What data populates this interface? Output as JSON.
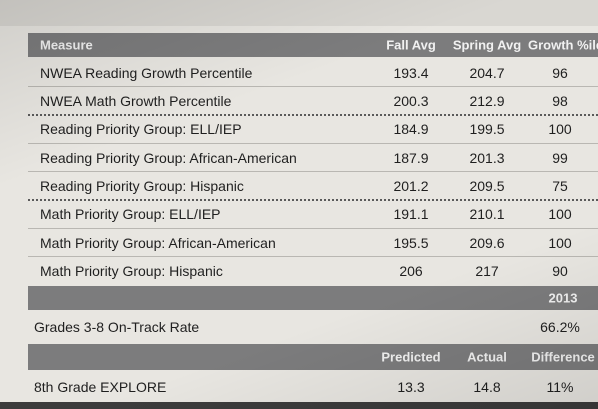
{
  "header": {
    "measure": "Measure",
    "fall_avg": "Fall Avg",
    "spring_avg": "Spring Avg",
    "growth": "Growth %ile"
  },
  "rows": [
    {
      "label": "NWEA Reading Growth Percentile",
      "fall": "193.4",
      "spring": "204.7",
      "growth": "96"
    },
    {
      "label": "NWEA Math Growth Percentile",
      "fall": "200.3",
      "spring": "212.9",
      "growth": "98"
    },
    {
      "label": "Reading Priority Group: ELL/IEP",
      "fall": "184.9",
      "spring": "199.5",
      "growth": "100"
    },
    {
      "label": "Reading Priority Group: African-American",
      "fall": "187.9",
      "spring": "201.3",
      "growth": "99"
    },
    {
      "label": "Reading Priority Group: Hispanic",
      "fall": "201.2",
      "spring": "209.5",
      "growth": "75"
    },
    {
      "label": "Math Priority Group: ELL/IEP",
      "fall": "191.1",
      "spring": "210.1",
      "growth": "100"
    },
    {
      "label": "Math Priority Group: African-American",
      "fall": "195.5",
      "spring": "209.6",
      "growth": "100"
    },
    {
      "label": "Math Priority Group: Hispanic",
      "fall": "206",
      "spring": "217",
      "growth": "90"
    }
  ],
  "ontrack": {
    "year_header": "2013",
    "label": "Grades 3-8 On-Track Rate",
    "value": "66.2%"
  },
  "explore": {
    "predicted_header": "Predicted",
    "actual_header": "Actual",
    "difference_header": "Difference",
    "label": "8th Grade EXPLORE",
    "predicted": "13.3",
    "actual": "14.8",
    "difference": "11%"
  }
}
